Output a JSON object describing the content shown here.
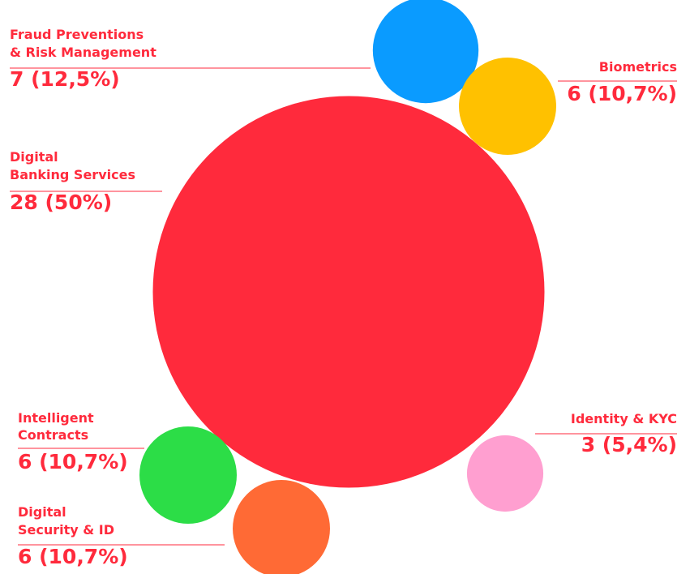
{
  "chart_data": {
    "type": "bubble",
    "categories": [
      [
        "Fraud Preventions",
        "& Risk Management"
      ],
      [
        "Biometrics"
      ],
      [
        "Digital",
        "Banking Services"
      ],
      [
        "Intelligent",
        "Contracts"
      ],
      [
        "Digital",
        "Security & ID"
      ],
      [
        "Identity & KYC"
      ]
    ],
    "values": [
      7,
      6,
      28,
      6,
      6,
      3
    ],
    "value_labels": [
      "7 (12,5%)",
      "6 (10,7%)",
      "28 (50%)",
      "6 (10,7%)",
      "6 (10,7%)",
      "3 (5,4%)"
    ],
    "colors": [
      "#0a9bff",
      "#ffc100",
      "#ff2a3c",
      "#2cdd47",
      "#ff6a35",
      "#ff9fd0"
    ],
    "label_color": "#ff2a3c"
  }
}
